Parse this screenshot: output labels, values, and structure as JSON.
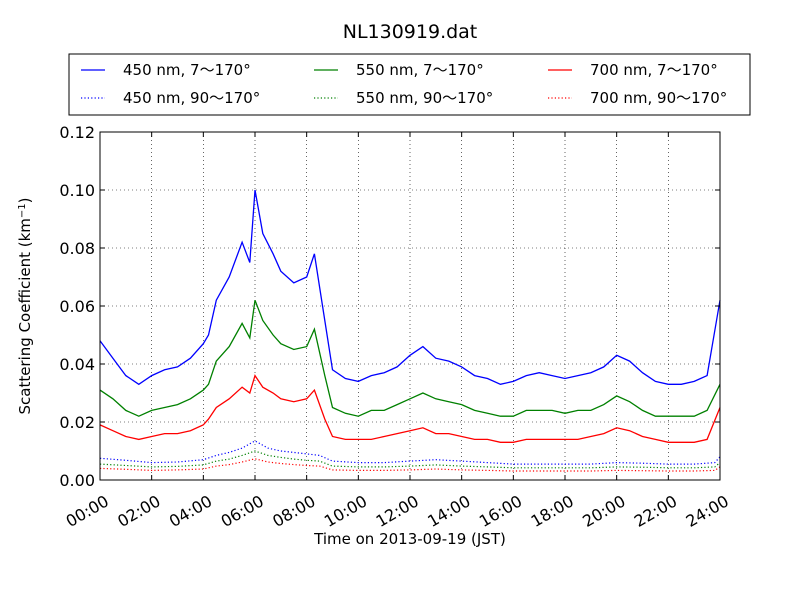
{
  "chart_data": {
    "type": "line",
    "title": "NL130919.dat",
    "xlabel": "Time on 2013-09-19 (JST)",
    "ylabel": "Scattering Coefficient (km",
    "ylabel_exp": "−1",
    "ylabel_close": ")",
    "xlim": [
      0,
      24
    ],
    "ylim": [
      0,
      0.12
    ],
    "grid": true,
    "legend_position": "top",
    "x_ticks": [
      0,
      2,
      4,
      6,
      8,
      10,
      12,
      14,
      16,
      18,
      20,
      22,
      24
    ],
    "x_tick_labels": [
      "00:00",
      "02:00",
      "04:00",
      "06:00",
      "08:00",
      "10:00",
      "12:00",
      "14:00",
      "16:00",
      "18:00",
      "20:00",
      "22:00",
      "24:00"
    ],
    "y_ticks": [
      0,
      0.02,
      0.04,
      0.06,
      0.08,
      0.1,
      0.12
    ],
    "y_tick_labels": [
      "0.00",
      "0.02",
      "0.04",
      "0.06",
      "0.08",
      "0.10",
      "0.12"
    ],
    "x_unit": "hours",
    "series": [
      {
        "name": "450 nm, 7～170°",
        "color": "#0000ff",
        "style": "solid",
        "x": [
          0,
          0.5,
          1,
          1.5,
          2,
          2.5,
          3,
          3.5,
          4,
          4.2,
          4.5,
          5,
          5.5,
          5.8,
          6,
          6.3,
          6.7,
          7,
          7.5,
          8,
          8.3,
          8.7,
          9,
          9.5,
          10,
          10.5,
          11,
          11.5,
          12,
          12.5,
          13,
          13.5,
          14,
          14.5,
          15,
          15.5,
          16,
          16.5,
          17,
          17.5,
          18,
          18.5,
          19,
          19.5,
          20,
          20.5,
          21,
          21.5,
          22,
          22.5,
          23,
          23.5,
          24
        ],
        "y": [
          0.048,
          0.042,
          0.036,
          0.033,
          0.036,
          0.038,
          0.039,
          0.042,
          0.047,
          0.05,
          0.062,
          0.07,
          0.082,
          0.075,
          0.1,
          0.085,
          0.078,
          0.072,
          0.068,
          0.07,
          0.078,
          0.055,
          0.038,
          0.035,
          0.034,
          0.036,
          0.037,
          0.039,
          0.043,
          0.046,
          0.042,
          0.041,
          0.039,
          0.036,
          0.035,
          0.033,
          0.034,
          0.036,
          0.037,
          0.036,
          0.035,
          0.036,
          0.037,
          0.039,
          0.043,
          0.041,
          0.037,
          0.034,
          0.033,
          0.033,
          0.034,
          0.036,
          0.062
        ]
      },
      {
        "name": "550 nm, 7～170°",
        "color": "#008000",
        "style": "solid",
        "x": [
          0,
          0.5,
          1,
          1.5,
          2,
          2.5,
          3,
          3.5,
          4,
          4.2,
          4.5,
          5,
          5.5,
          5.8,
          6,
          6.3,
          6.7,
          7,
          7.5,
          8,
          8.3,
          8.7,
          9,
          9.5,
          10,
          10.5,
          11,
          11.5,
          12,
          12.5,
          13,
          13.5,
          14,
          14.5,
          15,
          15.5,
          16,
          16.5,
          17,
          17.5,
          18,
          18.5,
          19,
          19.5,
          20,
          20.5,
          21,
          21.5,
          22,
          22.5,
          23,
          23.5,
          24
        ],
        "y": [
          0.031,
          0.028,
          0.024,
          0.022,
          0.024,
          0.025,
          0.026,
          0.028,
          0.031,
          0.033,
          0.041,
          0.046,
          0.054,
          0.049,
          0.062,
          0.055,
          0.05,
          0.047,
          0.045,
          0.046,
          0.052,
          0.036,
          0.025,
          0.023,
          0.022,
          0.024,
          0.024,
          0.026,
          0.028,
          0.03,
          0.028,
          0.027,
          0.026,
          0.024,
          0.023,
          0.022,
          0.022,
          0.024,
          0.024,
          0.024,
          0.023,
          0.024,
          0.024,
          0.026,
          0.029,
          0.027,
          0.024,
          0.022,
          0.022,
          0.022,
          0.022,
          0.024,
          0.033
        ]
      },
      {
        "name": "700 nm, 7～170°",
        "color": "#ff0000",
        "style": "solid",
        "x": [
          0,
          0.5,
          1,
          1.5,
          2,
          2.5,
          3,
          3.5,
          4,
          4.2,
          4.5,
          5,
          5.5,
          5.8,
          6,
          6.3,
          6.7,
          7,
          7.5,
          8,
          8.3,
          8.7,
          9,
          9.5,
          10,
          10.5,
          11,
          11.5,
          12,
          12.5,
          13,
          13.5,
          14,
          14.5,
          15,
          15.5,
          16,
          16.5,
          17,
          17.5,
          18,
          18.5,
          19,
          19.5,
          20,
          20.5,
          21,
          21.5,
          22,
          22.5,
          23,
          23.5,
          24
        ],
        "y": [
          0.019,
          0.017,
          0.015,
          0.014,
          0.015,
          0.016,
          0.016,
          0.017,
          0.019,
          0.021,
          0.025,
          0.028,
          0.032,
          0.03,
          0.036,
          0.032,
          0.03,
          0.028,
          0.027,
          0.028,
          0.031,
          0.021,
          0.015,
          0.014,
          0.014,
          0.014,
          0.015,
          0.016,
          0.017,
          0.018,
          0.016,
          0.016,
          0.015,
          0.014,
          0.014,
          0.013,
          0.013,
          0.014,
          0.014,
          0.014,
          0.014,
          0.014,
          0.015,
          0.016,
          0.018,
          0.017,
          0.015,
          0.014,
          0.013,
          0.013,
          0.013,
          0.014,
          0.025
        ]
      },
      {
        "name": "450 nm, 90～170°",
        "color": "#0000ff",
        "style": "dotted",
        "x": [
          0,
          1,
          2,
          3,
          4,
          4.5,
          5,
          5.5,
          6,
          6.5,
          7,
          7.5,
          8,
          8.5,
          9,
          10,
          11,
          12,
          13,
          14,
          15,
          16,
          17,
          18,
          19,
          20,
          21,
          22,
          23,
          23.8,
          24
        ],
        "y": [
          0.0075,
          0.0068,
          0.006,
          0.0062,
          0.007,
          0.0085,
          0.0095,
          0.011,
          0.0135,
          0.011,
          0.01,
          0.0095,
          0.009,
          0.0085,
          0.0065,
          0.006,
          0.006,
          0.0065,
          0.007,
          0.0065,
          0.006,
          0.0055,
          0.0055,
          0.0055,
          0.0055,
          0.006,
          0.0058,
          0.0055,
          0.0055,
          0.006,
          0.008
        ]
      },
      {
        "name": "550 nm, 90～170°",
        "color": "#008000",
        "style": "dotted",
        "x": [
          0,
          1,
          2,
          3,
          4,
          4.5,
          5,
          5.5,
          6,
          6.5,
          7,
          7.5,
          8,
          8.5,
          9,
          10,
          11,
          12,
          13,
          14,
          15,
          16,
          17,
          18,
          19,
          20,
          21,
          22,
          23,
          23.8,
          24
        ],
        "y": [
          0.0055,
          0.005,
          0.0045,
          0.0047,
          0.0052,
          0.0065,
          0.0072,
          0.0085,
          0.01,
          0.0085,
          0.0078,
          0.0072,
          0.0068,
          0.0065,
          0.0048,
          0.0045,
          0.0045,
          0.0048,
          0.0052,
          0.0048,
          0.0045,
          0.0042,
          0.0042,
          0.0042,
          0.0042,
          0.0045,
          0.0044,
          0.0042,
          0.0042,
          0.0045,
          0.006
        ]
      },
      {
        "name": "700 nm, 90～170°",
        "color": "#ff0000",
        "style": "dotted",
        "x": [
          0,
          1,
          2,
          3,
          4,
          4.5,
          5,
          5.5,
          6,
          6.5,
          7,
          7.5,
          8,
          8.5,
          9,
          10,
          11,
          12,
          13,
          14,
          15,
          16,
          17,
          18,
          19,
          20,
          21,
          22,
          23,
          23.8,
          24
        ],
        "y": [
          0.004,
          0.0037,
          0.0033,
          0.0035,
          0.0038,
          0.0048,
          0.0053,
          0.0062,
          0.0073,
          0.0062,
          0.0057,
          0.0053,
          0.005,
          0.0048,
          0.0035,
          0.0033,
          0.0033,
          0.0035,
          0.0038,
          0.0035,
          0.0033,
          0.0031,
          0.0031,
          0.0031,
          0.0031,
          0.0033,
          0.0032,
          0.0031,
          0.0031,
          0.0033,
          0.0045
        ]
      }
    ],
    "legend_order": [
      0,
      1,
      2,
      3,
      4,
      5
    ]
  }
}
